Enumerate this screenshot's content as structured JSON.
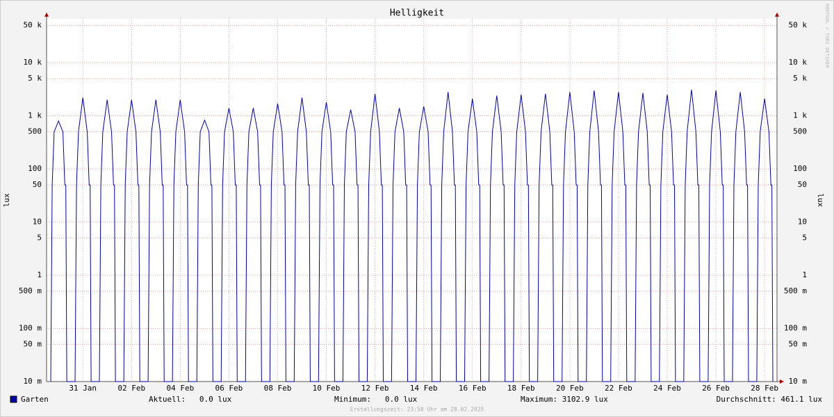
{
  "chart_data": {
    "type": "line",
    "title": "Helligkeit",
    "y_label": "lux",
    "y2_label": "lux",
    "credit": "RRDTOOL / TOBI OETIKER",
    "footer": "Erstellungszeit: 23:58 Uhr am 28.02.2025",
    "stats": [
      "Aktuell:   0.0 lux",
      "Minimum:   0.0 lux",
      "Maximum: 3102.9 lux",
      "Durchschnitt: 461.1 lux"
    ],
    "log_scale": true,
    "grid": true,
    "xlim": [
      -1.49,
      28.51
    ],
    "xticks": [
      {
        "value": 0,
        "label": "31 Jan"
      },
      {
        "value": 2,
        "label": "02 Feb"
      },
      {
        "value": 4,
        "label": "04 Feb"
      },
      {
        "value": 6,
        "label": "06 Feb"
      },
      {
        "value": 8,
        "label": "08 Feb"
      },
      {
        "value": 10,
        "label": "10 Feb"
      },
      {
        "value": 12,
        "label": "12 Feb"
      },
      {
        "value": 14,
        "label": "14 Feb"
      },
      {
        "value": 16,
        "label": "16 Feb"
      },
      {
        "value": 18,
        "label": "18 Feb"
      },
      {
        "value": 20,
        "label": "20 Feb"
      },
      {
        "value": 22,
        "label": "22 Feb"
      },
      {
        "value": 24,
        "label": "24 Feb"
      },
      {
        "value": 26,
        "label": "26 Feb"
      },
      {
        "value": 28,
        "label": "28 Feb"
      }
    ],
    "ylim": [
      0.01,
      67000
    ],
    "yticks": [
      {
        "value": 0.01,
        "label": "10 m"
      },
      {
        "value": 0.05,
        "label": "50 m"
      },
      {
        "value": 0.1,
        "label": "100 m"
      },
      {
        "value": 0.5,
        "label": "500 m"
      },
      1,
      5,
      10,
      50,
      100,
      500,
      {
        "value": 1000,
        "label": "1 k"
      },
      {
        "value": 5000,
        "label": "5 k"
      },
      {
        "value": 10000,
        "label": "10 k"
      },
      {
        "value": 50000,
        "label": "50 k"
      }
    ],
    "x": [
      -1.32,
      -1.26,
      -1.18,
      -1,
      -0.82,
      -0.74,
      -0.7,
      -0.66,
      -0.32,
      -0.26,
      -0.18,
      0,
      0.18,
      0.26,
      0.3,
      0.34,
      0.68,
      0.74,
      0.82,
      1,
      1.18,
      1.26,
      1.3,
      1.34,
      1.68,
      1.74,
      1.82,
      2,
      2.18,
      2.26,
      2.3,
      2.34,
      2.68,
      2.74,
      2.82,
      3,
      3.18,
      3.26,
      3.3,
      3.34,
      3.68,
      3.74,
      3.82,
      4,
      4.18,
      4.26,
      4.3,
      4.34,
      4.68,
      4.74,
      4.82,
      5,
      5.18,
      5.26,
      5.3,
      5.34,
      5.68,
      5.74,
      5.82,
      6,
      6.18,
      6.26,
      6.3,
      6.34,
      6.68,
      6.74,
      6.82,
      7,
      7.18,
      7.26,
      7.3,
      7.34,
      7.68,
      7.74,
      7.82,
      8,
      8.18,
      8.26,
      8.3,
      8.34,
      8.68,
      8.74,
      8.82,
      9,
      9.18,
      9.26,
      9.3,
      9.34,
      9.68,
      9.74,
      9.82,
      10,
      10.18,
      10.26,
      10.3,
      10.34,
      10.68,
      10.74,
      10.82,
      11,
      11.18,
      11.26,
      11.3,
      11.34,
      11.68,
      11.74,
      11.82,
      12,
      12.18,
      12.26,
      12.3,
      12.34,
      12.68,
      12.74,
      12.82,
      13,
      13.18,
      13.26,
      13.3,
      13.34,
      13.68,
      13.74,
      13.82,
      14,
      14.18,
      14.26,
      14.3,
      14.34,
      14.68,
      14.74,
      14.82,
      15,
      15.18,
      15.26,
      15.3,
      15.34,
      15.68,
      15.74,
      15.82,
      16,
      16.18,
      16.26,
      16.3,
      16.34,
      16.68,
      16.74,
      16.82,
      17,
      17.18,
      17.26,
      17.3,
      17.34,
      17.68,
      17.74,
      17.82,
      18,
      18.18,
      18.26,
      18.3,
      18.34,
      18.68,
      18.74,
      18.82,
      19,
      19.18,
      19.26,
      19.3,
      19.34,
      19.68,
      19.74,
      19.82,
      20,
      20.18,
      20.26,
      20.3,
      20.34,
      20.68,
      20.74,
      20.82,
      21,
      21.18,
      21.26,
      21.3,
      21.34,
      21.68,
      21.74,
      21.82,
      22,
      22.18,
      22.26,
      22.3,
      22.34,
      22.68,
      22.74,
      22.82,
      23,
      23.18,
      23.26,
      23.3,
      23.34,
      23.68,
      23.74,
      23.82,
      24,
      24.18,
      24.26,
      24.3,
      24.34,
      24.68,
      24.74,
      24.82,
      25,
      25.18,
      25.26,
      25.3,
      25.34,
      25.68,
      25.74,
      25.82,
      26,
      26.18,
      26.26,
      26.3,
      26.34,
      26.68,
      26.74,
      26.82,
      27,
      27.18,
      27.26,
      27.3,
      27.34,
      27.68,
      27.74,
      27.82,
      28,
      28.18,
      28.26,
      28.3,
      28.34
    ],
    "series": [
      {
        "name": "Garten",
        "color": "#0000aa",
        "values": [
          0.01,
          50,
          500,
          800,
          500,
          50,
          50,
          0.01,
          0.01,
          50,
          500,
          2200,
          500,
          50,
          50,
          0.01,
          0.01,
          50,
          500,
          2000,
          500,
          50,
          50,
          0.01,
          0.01,
          50,
          500,
          2000,
          500,
          50,
          50,
          0.01,
          0.01,
          50,
          500,
          2000,
          500,
          50,
          50,
          0.01,
          0.01,
          50,
          500,
          2000,
          500,
          50,
          50,
          0.01,
          0.01,
          50,
          500,
          830,
          500,
          50,
          50,
          0.01,
          0.01,
          50,
          500,
          1400,
          500,
          50,
          50,
          0.01,
          0.01,
          50,
          500,
          1400,
          500,
          50,
          50,
          0.01,
          0.01,
          50,
          500,
          1700,
          500,
          50,
          50,
          0.01,
          0.01,
          50,
          500,
          2200,
          500,
          50,
          50,
          0.01,
          0.01,
          50,
          500,
          1800,
          500,
          50,
          50,
          0.01,
          0.01,
          50,
          500,
          1300,
          500,
          50,
          50,
          0.01,
          0.01,
          50,
          500,
          2600,
          500,
          50,
          50,
          0.01,
          0.01,
          50,
          500,
          1400,
          500,
          50,
          50,
          0.01,
          0.01,
          50,
          500,
          1500,
          500,
          50,
          50,
          0.01,
          0.01,
          50,
          500,
          2800,
          500,
          50,
          50,
          0.01,
          0.01,
          50,
          500,
          2100,
          500,
          50,
          50,
          0.01,
          0.01,
          50,
          500,
          2400,
          500,
          50,
          50,
          0.01,
          0.01,
          50,
          500,
          2500,
          500,
          50,
          50,
          0.01,
          0.01,
          50,
          500,
          2600,
          500,
          50,
          50,
          0.01,
          0.01,
          50,
          500,
          2800,
          500,
          50,
          50,
          0.01,
          0.01,
          50,
          500,
          3000,
          500,
          50,
          50,
          0.01,
          0.01,
          50,
          500,
          2800,
          500,
          50,
          50,
          0.01,
          0.01,
          50,
          500,
          2700,
          500,
          50,
          50,
          0.01,
          0.01,
          50,
          500,
          2500,
          500,
          50,
          50,
          0.01,
          0.01,
          50,
          500,
          3102.9,
          500,
          50,
          50,
          0.01,
          0.01,
          50,
          500,
          3000,
          500,
          50,
          50,
          0.01,
          0.01,
          50,
          500,
          2800,
          500,
          50,
          50,
          0.01,
          0.01,
          50,
          500,
          2100,
          500,
          50,
          50,
          0.01
        ]
      }
    ]
  }
}
